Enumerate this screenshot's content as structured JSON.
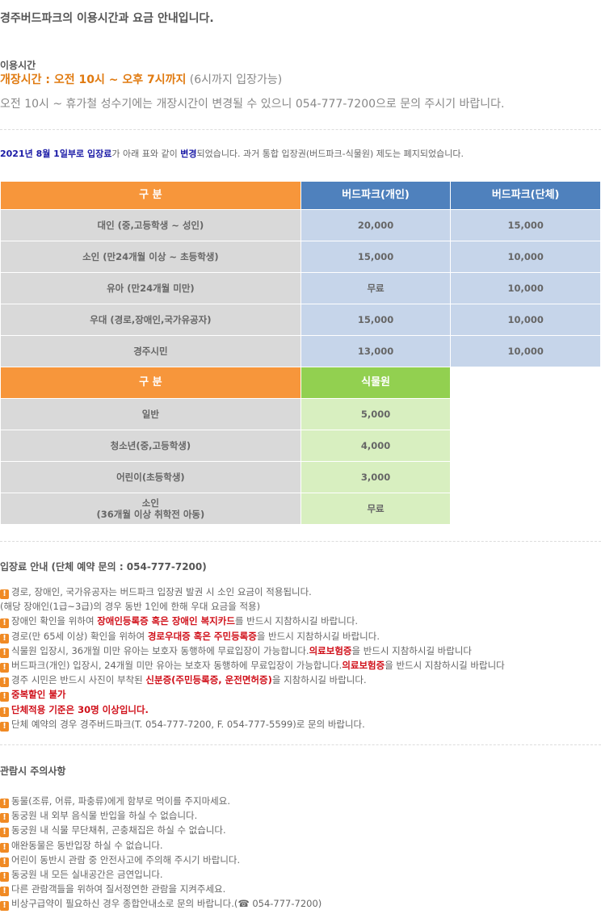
{
  "intro": "경주버드파크의 이용시간과 요금 안내입니다.",
  "hours": {
    "label": "이용시간",
    "main": "개장시간 : 오전 10시 ~ 오후 7시까지",
    "sub": " (6시까지 입장가능)",
    "note": "오전 10시 ~ 휴가철 성수기에는 개장시간이 변경될 수 있으니 054-777-7200으로 문의 주시기 바랍니다."
  },
  "notice": [
    {
      "t": "2021년 8월 1일부로 입장료",
      "s": "b"
    },
    {
      "t": "가 아래 표와 같이 "
    },
    {
      "t": "변경",
      "s": "b"
    },
    {
      "t": "되었습니다. 과거 통합 입장권(버드파크-식물원) 제도는 폐지되었습니다."
    }
  ],
  "table1": {
    "headers": [
      "구 분",
      "버드파크(개인)",
      "버드파크(단체)"
    ],
    "rows": [
      [
        "대인 (중,고등학생 ~ 성인)",
        "20,000",
        "15,000"
      ],
      [
        "소인 (만24개월 이상 ~ 초등학생)",
        "15,000",
        "10,000"
      ],
      [
        "유아 (만24개월 미만)",
        "무료",
        "10,000"
      ],
      [
        "우대 (경로,장애인,국가유공자)",
        "15,000",
        "10,000"
      ],
      [
        "경주시민",
        "13,000",
        "10,000"
      ]
    ]
  },
  "table2": {
    "headers": [
      "구 분",
      "식물원"
    ],
    "rows": [
      [
        "일반",
        "5,000"
      ],
      [
        "청소년(중,고등학생)",
        "4,000"
      ],
      [
        "어린이(초등학생)",
        "3,000"
      ],
      [
        "소인\n(36개월 이상 취학전 아동)",
        "무료"
      ]
    ]
  },
  "admission": {
    "title": "입장료 안내 (단체 예약 문의 : 054-777-7200)",
    "items": [
      [
        {
          "t": "경로, 장애인, 국가유공자는 버드파크 입장권 발권 시 소인 요금이 적용됩니다."
        }
      ],
      [
        {
          "t": "(해당 장애인(1급~3급)의 경우 동반 1인에 한해 우대 요금을 적용)",
          "noicon": true
        }
      ],
      [
        {
          "t": "장애인 확인을 위하여 "
        },
        {
          "t": "장애인등록증 혹은 장애인 복지카드",
          "s": "r"
        },
        {
          "t": "를 반드시 지참하시길 바랍니다."
        }
      ],
      [
        {
          "t": "경로(만 65세 이상) 확인을 위하여 "
        },
        {
          "t": "경로우대증 혹은 주민등록증",
          "s": "r"
        },
        {
          "t": "을 반드시 지참하시길 바랍니다."
        }
      ],
      [
        {
          "t": "식물원 입장시, 36개월 미만 유아는 보호자 동행하에 무료입장이 가능합니다."
        },
        {
          "t": "의료보험증",
          "s": "r"
        },
        {
          "t": "을 반드시 지참하시길 바랍니다"
        }
      ],
      [
        {
          "t": "버드파크(개인) 입장시, 24개월 미만 유아는 보호자 동행하에 무료입장이 가능합니다."
        },
        {
          "t": "의료보험증",
          "s": "r"
        },
        {
          "t": "을 반드시 지참하시길 바랍니다"
        }
      ],
      [
        {
          "t": "경주 시민은 반드시 사진이 부착된 "
        },
        {
          "t": "신분증(주민등록증, 운전면허증)",
          "s": "r"
        },
        {
          "t": "을 지참하시길 바랍니다."
        }
      ],
      [
        {
          "t": "중복할인 불가",
          "s": "r"
        }
      ],
      [
        {
          "t": "단체적용 기준은 30명 이상입니다.",
          "s": "r"
        }
      ],
      [
        {
          "t": "단체 예약의 경우 경주버드파크(T. 054-777-7200, F. 054-777-5599)로 문의 바랍니다."
        }
      ]
    ]
  },
  "cautions": {
    "title": "관람시 주의사항",
    "items": [
      [
        {
          "t": "동물(조류, 어류, 파충류)에게 함부로 먹이를 주지마세요."
        }
      ],
      [
        {
          "t": "동궁원 내 외부 음식물 반입을 하실 수 없습니다."
        }
      ],
      [
        {
          "t": "동궁원 내 식물 무단채취, 곤충채집은 하실 수 없습니다."
        }
      ],
      [
        {
          "t": "애완동물은 동반입장 하실 수 없습니다."
        }
      ],
      [
        {
          "t": "어린이 동반시 관람 중 안전사고에 주의해 주시기 바랍니다."
        }
      ],
      [
        {
          "t": "동궁원 내 모든 실내공간은 금연입니다."
        }
      ],
      [
        {
          "t": "다른 관람객들을 위하여 질서정연한 관람을 지켜주세요."
        }
      ],
      [
        {
          "t": "비상구급약이 필요하신 경우 종합안내소로 문의 바랍니다.(☎ 054-777-7200)"
        }
      ]
    ]
  },
  "icon": "exclamation-icon",
  "colors": {
    "orange": "#f7963b",
    "blue": "#4f81bd",
    "green": "#92d050",
    "red": "#d0101a",
    "navy": "#1a1aa6"
  }
}
